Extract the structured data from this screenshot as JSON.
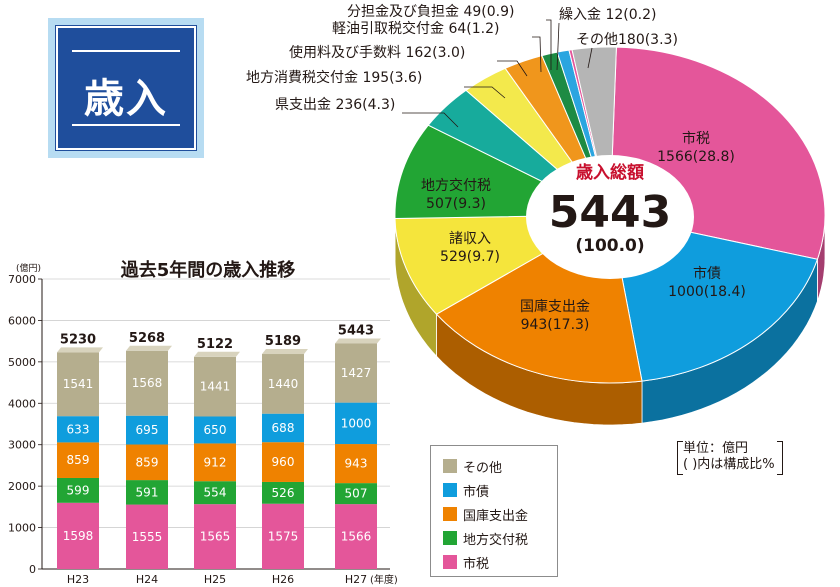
{
  "badge": {
    "label": "歳入"
  },
  "pie": {
    "center_title": "歳入総額",
    "center_value": "5443",
    "center_pct": "(100.0)",
    "unit_line1": "単位：億円",
    "unit_line2": "( )内は構成比%"
  },
  "chart_data": [
    {
      "type": "pie",
      "title": "",
      "total": 5443,
      "slices": [
        {
          "name": "市税",
          "value": 1566,
          "pct": 28.8,
          "color": "#e4569a"
        },
        {
          "name": "市債",
          "value": 1000,
          "pct": 18.4,
          "color": "#0f9ddd"
        },
        {
          "name": "国庫支出金",
          "value": 943,
          "pct": 17.3,
          "color": "#ef8200"
        },
        {
          "name": "諸収入",
          "value": 529,
          "pct": 9.7,
          "color": "#f5e53c"
        },
        {
          "name": "地方交付税",
          "value": 507,
          "pct": 9.3,
          "color": "#22a534"
        },
        {
          "name": "県支出金",
          "value": 236,
          "pct": 4.3,
          "color": "#17ab9c"
        },
        {
          "name": "地方消費税交付金",
          "value": 195,
          "pct": 3.6,
          "color": "#f3e94c"
        },
        {
          "name": "使用料及び手数料",
          "value": 162,
          "pct": 3.0,
          "color": "#f0961c"
        },
        {
          "name": "軽油引取税交付金",
          "value": 64,
          "pct": 1.2,
          "color": "#1d8b43"
        },
        {
          "name": "分担金及び負担金",
          "value": 49,
          "pct": 0.9,
          "color": "#2ba5e0"
        },
        {
          "name": "繰入金",
          "value": 12,
          "pct": 0.2,
          "color": "#e4569a"
        },
        {
          "name": "その他",
          "value": 180,
          "pct": 3.3,
          "color": "#b5b5b5"
        }
      ],
      "labels": {
        "市税": [
          "市税",
          "1566(28.8)"
        ],
        "市債": [
          "市債",
          "1000(18.4)"
        ],
        "国庫支出金": [
          "国庫支出金",
          "943(17.3)"
        ],
        "諸収入": [
          "諸収入",
          "529(9.7)"
        ],
        "地方交付税": [
          "地方交付税",
          "507(9.3)"
        ],
        "県支出金": [
          "県支出金 236(4.3)"
        ],
        "地方消費税交付金": [
          "地方消費税交付金 195(3.6)"
        ],
        "使用料及び手数料": [
          "使用料及び手数料 162(3.0)"
        ],
        "軽油引取税交付金": [
          "軽油引取税交付金 64(1.2)"
        ],
        "分担金及び負担金": [
          "分担金及び負担金 49(0.9)"
        ],
        "繰入金": [
          "繰入金 12(0.2)"
        ],
        "その他": [
          "その他180(3.3)"
        ]
      }
    },
    {
      "type": "bar",
      "title": "過去5年間の歳入推移",
      "ylabel": "(億円)",
      "xlabel_suffix": "(年度)",
      "ylim": [
        0,
        7000
      ],
      "yticks": [
        0,
        1000,
        2000,
        3000,
        4000,
        5000,
        6000,
        7000
      ],
      "categories": [
        "H23",
        "H24",
        "H25",
        "H26",
        "H27"
      ],
      "totals": [
        5230,
        5268,
        5122,
        5189,
        5443
      ],
      "series": [
        {
          "name": "市税",
          "color": "#e4569a",
          "values": [
            1598,
            1555,
            1565,
            1575,
            1566
          ]
        },
        {
          "name": "地方交付税",
          "color": "#22a534",
          "values": [
            599,
            591,
            554,
            526,
            507
          ]
        },
        {
          "name": "国庫支出金",
          "color": "#ef8200",
          "values": [
            859,
            859,
            912,
            960,
            943
          ]
        },
        {
          "name": "市債",
          "color": "#0f9ddd",
          "values": [
            633,
            695,
            650,
            688,
            1000
          ]
        },
        {
          "name": "その他",
          "color": "#b5ae8e",
          "values": [
            1541,
            1568,
            1441,
            1440,
            1427
          ]
        }
      ],
      "legend": [
        "その他",
        "市債",
        "国庫支出金",
        "地方交付税",
        "市税"
      ]
    }
  ]
}
